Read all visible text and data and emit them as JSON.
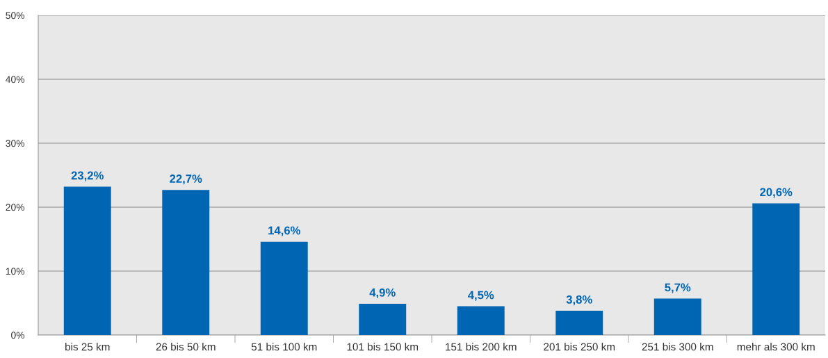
{
  "chart_data": {
    "type": "bar",
    "categories": [
      "bis 25 km",
      "26 bis 50 km",
      "51 bis 100 km",
      "101 bis 150 km",
      "151 bis 200 km",
      "201 bis 250 km",
      "251 bis 300 km",
      "mehr als 300 km"
    ],
    "values": [
      23.2,
      22.7,
      14.6,
      4.9,
      4.5,
      3.8,
      5.7,
      20.6
    ],
    "value_labels": [
      "23,2%",
      "22,7%",
      "14,6%",
      "4,9%",
      "4,5%",
      "3,8%",
      "5,7%",
      "20,6%"
    ],
    "color": "#0066b3",
    "ylim": [
      0,
      50
    ],
    "yticks": [
      {
        "value": 0,
        "label": "0%"
      },
      {
        "value": 10,
        "label": "10%"
      },
      {
        "value": 20,
        "label": "20%"
      },
      {
        "value": 30,
        "label": "30%"
      },
      {
        "value": 40,
        "label": "40%"
      },
      {
        "value": 50,
        "label": "50%"
      }
    ],
    "grid": "y",
    "legend": false
  }
}
